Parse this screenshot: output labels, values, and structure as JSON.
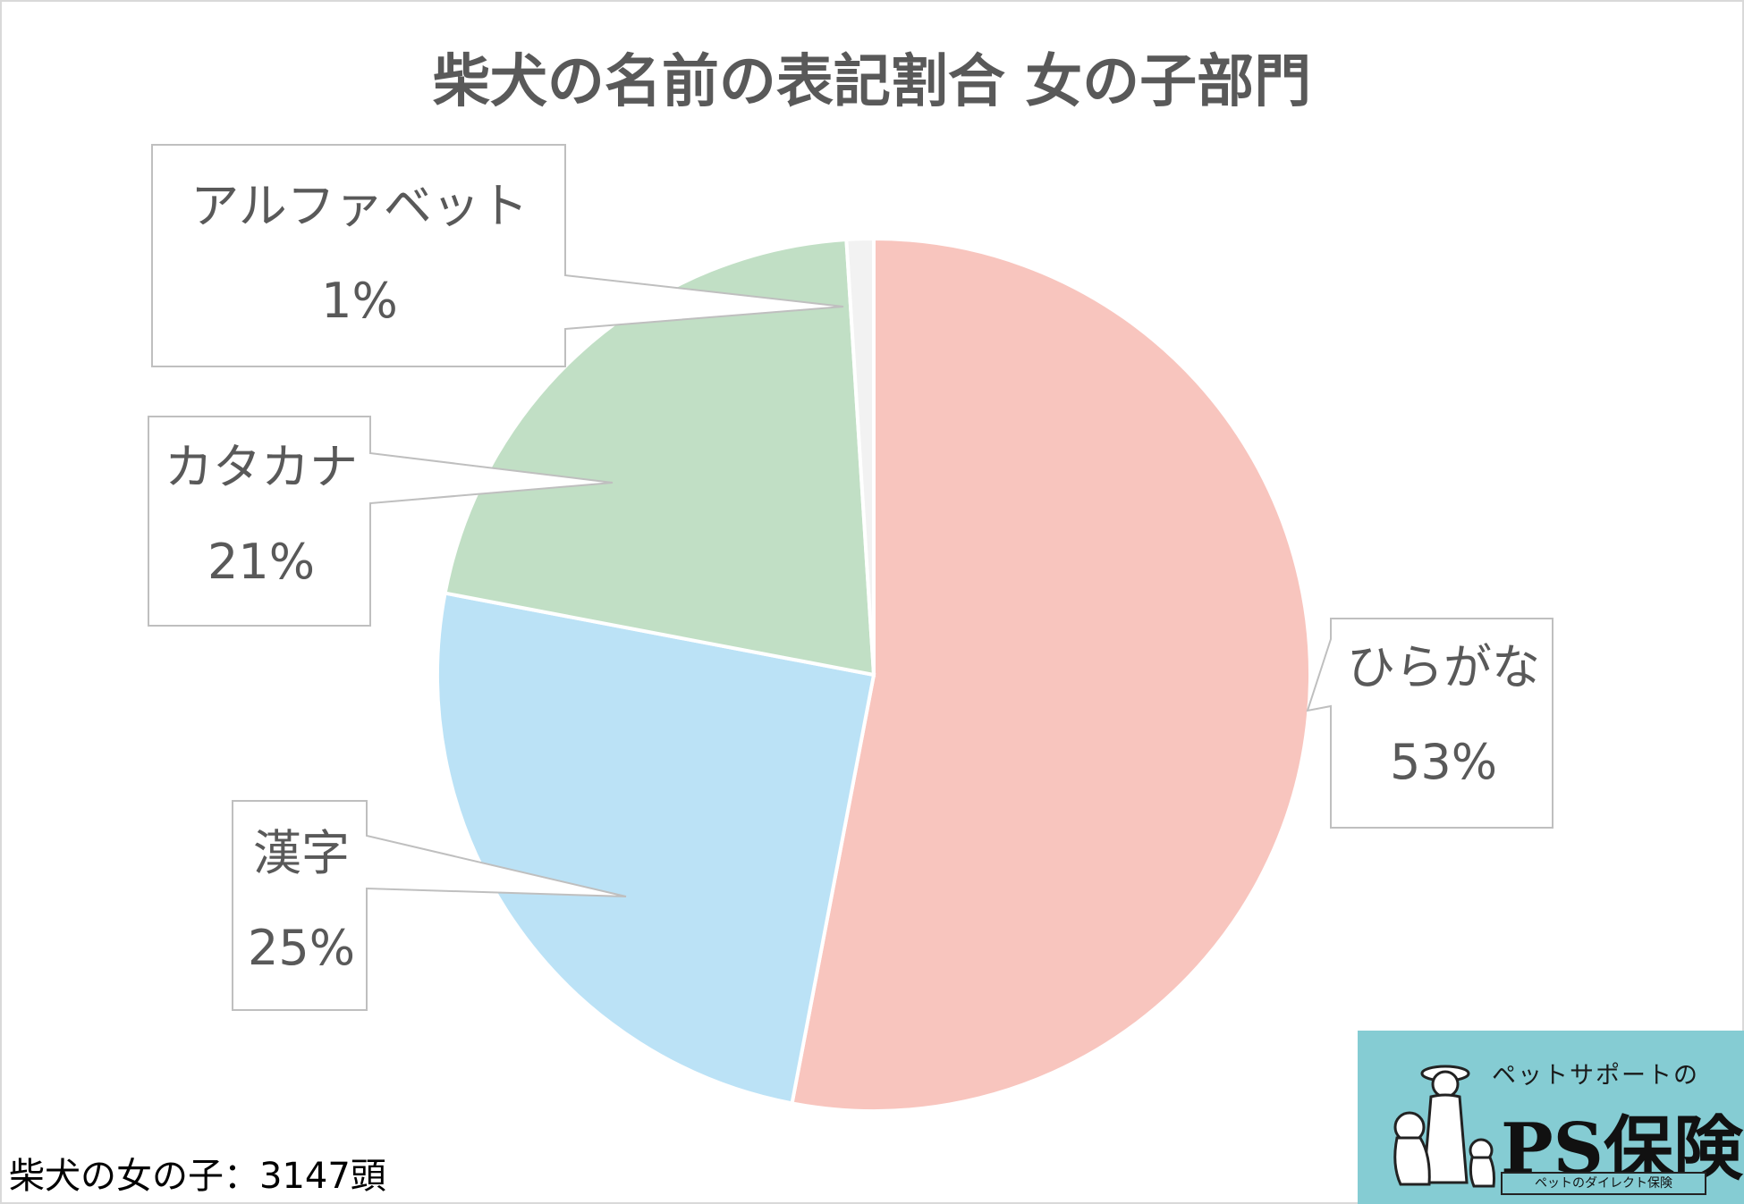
{
  "chart_data": {
    "type": "pie",
    "title": "柴犬の名前の表記割合 女の子部門",
    "slices": [
      {
        "label": "ひらがな",
        "value": 53,
        "display": "53%",
        "color": "#f8c5be"
      },
      {
        "label": "漢字",
        "value": 25,
        "display": "25%",
        "color": "#bbe2f6"
      },
      {
        "label": "カタカナ",
        "value": 21,
        "display": "21%",
        "color": "#c1dfc5"
      },
      {
        "label": "アルファベット",
        "value": 1,
        "display": "1%",
        "color": "#f2f2f2"
      }
    ],
    "start": "12 o'clock, clockwise"
  },
  "footnote": "柴犬の女の子：3147頭",
  "logo": {
    "tagline": "ペットサポートの",
    "brand": "PS保険",
    "sub": "ペットのダイレクト保険"
  }
}
